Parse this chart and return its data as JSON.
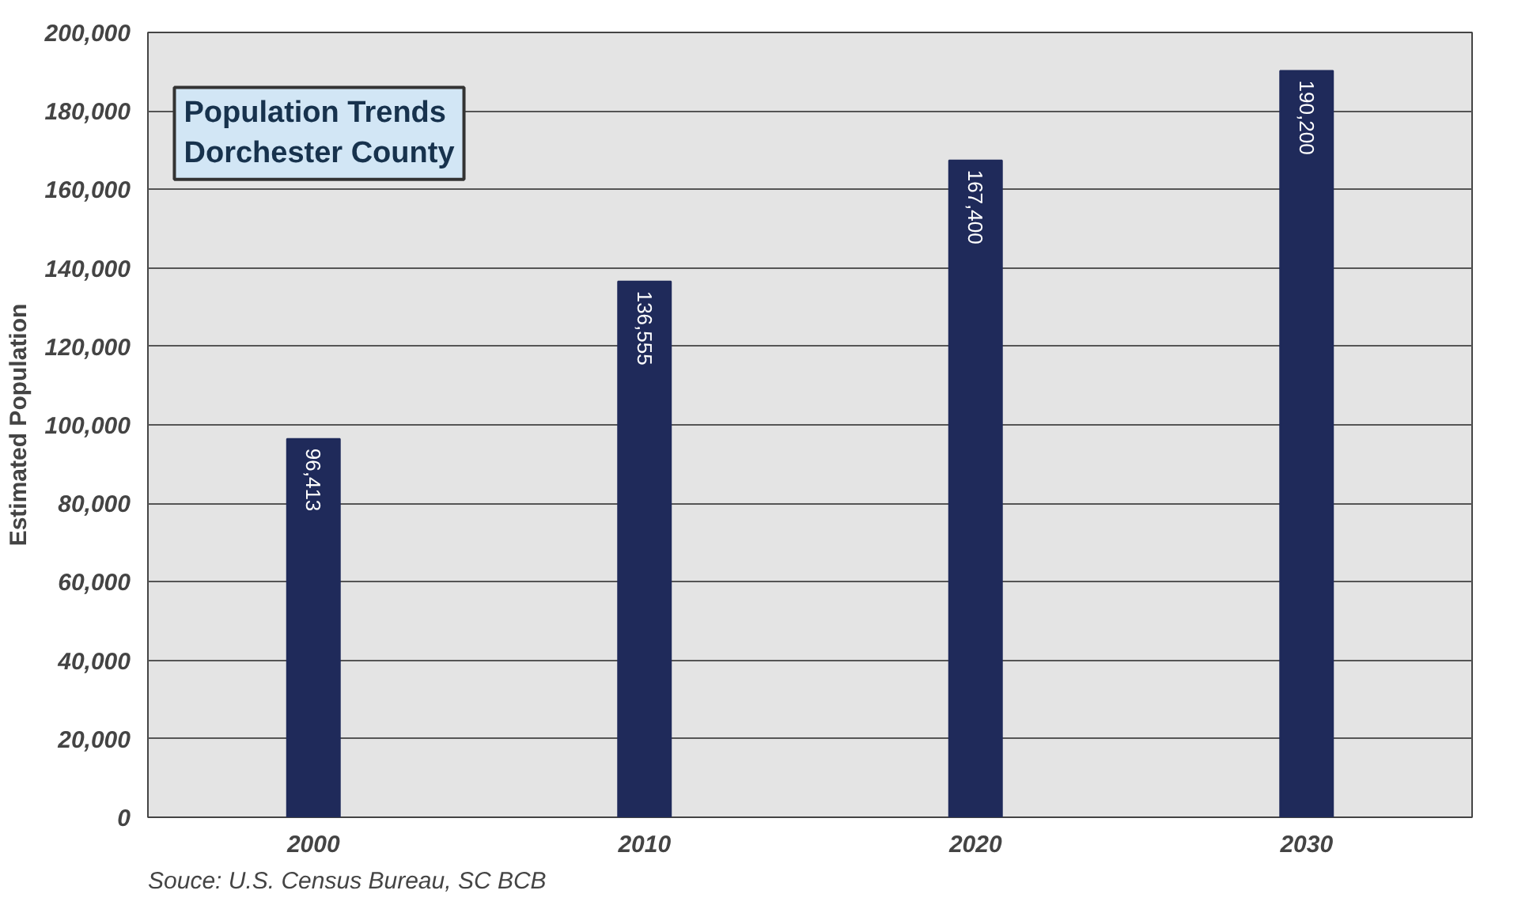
{
  "chart_data": {
    "type": "bar",
    "title": "Population Trends\nDorchester County",
    "ylabel": "Estimated Population",
    "categories": [
      "2000",
      "2010",
      "2020",
      "2030"
    ],
    "values": [
      96413,
      136555,
      167400,
      190200
    ],
    "value_labels": [
      "96,413",
      "136,555",
      "167,400",
      "190,200"
    ],
    "color": "#1f2a5a",
    "ylim": [
      0,
      200000
    ],
    "yticks": [
      0,
      {
        "value": 20000,
        "label": "20,000"
      },
      {
        "value": 40000,
        "label": "40,000"
      },
      {
        "value": 60000,
        "label": "60,000"
      },
      {
        "value": 80000,
        "label": "80,000"
      },
      {
        "value": 100000,
        "label": "100,000"
      },
      {
        "value": 120000,
        "label": "120,000"
      },
      {
        "value": 140000,
        "label": "140,000"
      },
      {
        "value": 160000,
        "label": "160,000"
      },
      {
        "value": 180000,
        "label": "180,000"
      },
      {
        "value": 200000,
        "label": "200,000"
      }
    ],
    "grid": "y",
    "annotations": [
      "Souce:  U.S. Census Bureau, SC BCB"
    ]
  }
}
